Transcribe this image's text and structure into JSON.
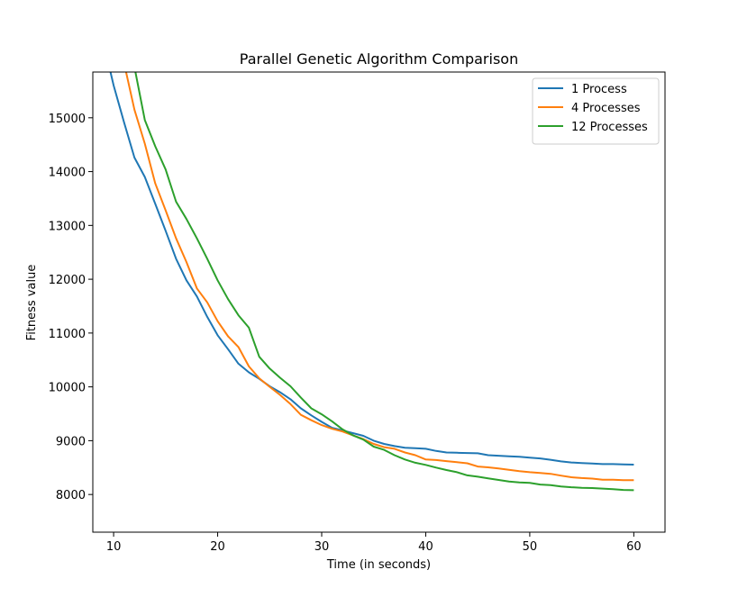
{
  "chart_data": {
    "type": "line",
    "title": "Parallel Genetic Algorithm Comparison",
    "xlabel": "Time (in seconds)",
    "ylabel": "Fitness value",
    "xlim": [
      8,
      63
    ],
    "ylim": [
      7300,
      15850
    ],
    "xticks": [
      10,
      20,
      30,
      40,
      50,
      60
    ],
    "yticks": [
      8000,
      9000,
      10000,
      11000,
      12000,
      13000,
      14000,
      15000
    ],
    "grid": false,
    "legend_position": "top-right",
    "series": [
      {
        "name": "1 Process",
        "color": "#1f77b4",
        "x": [
          9.7,
          10,
          11,
          12,
          13,
          14,
          15,
          16,
          17,
          18,
          19,
          20,
          21,
          22,
          23,
          24,
          25,
          26,
          27,
          28,
          29,
          30,
          31,
          32,
          33,
          34,
          35,
          36,
          37,
          38,
          39,
          40,
          41,
          42,
          43,
          44,
          45,
          46,
          47,
          48,
          49,
          50,
          51,
          52,
          53,
          54,
          55,
          56,
          57,
          58,
          59,
          60
        ],
        "y": [
          15850,
          15600,
          14920,
          14260,
          13900,
          13400,
          12900,
          12380,
          11980,
          11680,
          11300,
          10960,
          10700,
          10430,
          10270,
          10150,
          10010,
          9900,
          9770,
          9600,
          9470,
          9350,
          9240,
          9190,
          9140,
          9090,
          9000,
          8940,
          8900,
          8870,
          8860,
          8850,
          8810,
          8780,
          8775,
          8770,
          8765,
          8730,
          8720,
          8710,
          8700,
          8685,
          8670,
          8645,
          8615,
          8595,
          8585,
          8575,
          8565,
          8565,
          8560,
          8555
        ]
      },
      {
        "name": "4 Processes",
        "color": "#ff7f0e",
        "x": [
          11.2,
          12,
          13,
          14,
          15,
          16,
          17,
          18,
          19,
          20,
          21,
          22,
          23,
          24,
          25,
          26,
          27,
          28,
          29,
          30,
          31,
          32,
          33,
          34,
          35,
          36,
          37,
          38,
          39,
          40,
          41,
          42,
          43,
          44,
          45,
          46,
          47,
          48,
          49,
          50,
          51,
          52,
          53,
          54,
          55,
          56,
          57,
          58,
          59,
          60
        ],
        "y": [
          15850,
          15150,
          14520,
          13780,
          13280,
          12760,
          12320,
          11830,
          11570,
          11220,
          10940,
          10740,
          10380,
          10160,
          10000,
          9850,
          9680,
          9480,
          9380,
          9290,
          9220,
          9170,
          9100,
          9030,
          8940,
          8880,
          8850,
          8780,
          8730,
          8650,
          8640,
          8620,
          8600,
          8580,
          8520,
          8505,
          8485,
          8460,
          8435,
          8415,
          8400,
          8385,
          8350,
          8320,
          8305,
          8295,
          8275,
          8275,
          8265,
          8265
        ]
      },
      {
        "name": "12 Processes",
        "color": "#2ca02c",
        "x": [
          12.1,
          13,
          14,
          15,
          16,
          17,
          18,
          19,
          20,
          21,
          22,
          23,
          24,
          25,
          26,
          27,
          28,
          29,
          30,
          31,
          32,
          33,
          34,
          35,
          36,
          37,
          38,
          39,
          40,
          41,
          42,
          43,
          44,
          45,
          46,
          47,
          48,
          49,
          50,
          51,
          52,
          53,
          54,
          55,
          56,
          57,
          58,
          59,
          60
        ],
        "y": [
          15850,
          14960,
          14470,
          14040,
          13440,
          13120,
          12760,
          12380,
          11980,
          11630,
          11330,
          11100,
          10560,
          10340,
          10170,
          10010,
          9800,
          9600,
          9490,
          9360,
          9210,
          9100,
          9020,
          8890,
          8830,
          8730,
          8650,
          8590,
          8550,
          8500,
          8455,
          8415,
          8355,
          8330,
          8300,
          8270,
          8240,
          8225,
          8215,
          8185,
          8175,
          8150,
          8135,
          8125,
          8120,
          8110,
          8100,
          8085,
          8080
        ]
      }
    ]
  }
}
